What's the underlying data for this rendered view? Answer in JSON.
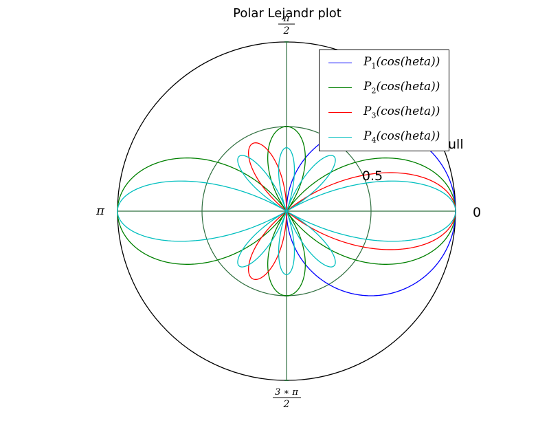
{
  "chart_data": {
    "type": "polar-line",
    "title": "Polar Lejandr plot",
    "theta_tick_labels": [
      {
        "angle": "0",
        "label": "0"
      },
      {
        "angle": "pi/2",
        "label_num": "π",
        "label_den": "2"
      },
      {
        "angle": "pi",
        "label": "π"
      },
      {
        "angle": "3pi/2",
        "label_num": "3 ∗ π",
        "label_den": "2"
      }
    ],
    "r_tick_labels": [
      "0.5",
      "ull"
    ],
    "rlim": [
      0,
      1
    ],
    "series": [
      {
        "name_base": "P",
        "sub": "1",
        "name_arg": "(cos(heta))",
        "order": 1,
        "color": "#0000ff"
      },
      {
        "name_base": "P",
        "sub": "2",
        "name_arg": "(cos(heta))",
        "order": 2,
        "color": "#008000"
      },
      {
        "name_base": "P",
        "sub": "3",
        "name_arg": "(cos(heta))",
        "order": 3,
        "color": "#ff0000"
      },
      {
        "name_base": "P",
        "sub": "4",
        "name_arg": "(cos(heta))",
        "order": 4,
        "color": "#00bfbf"
      }
    ],
    "grid": true,
    "grid_color": "#2f6f3f",
    "legend": "top-right"
  }
}
